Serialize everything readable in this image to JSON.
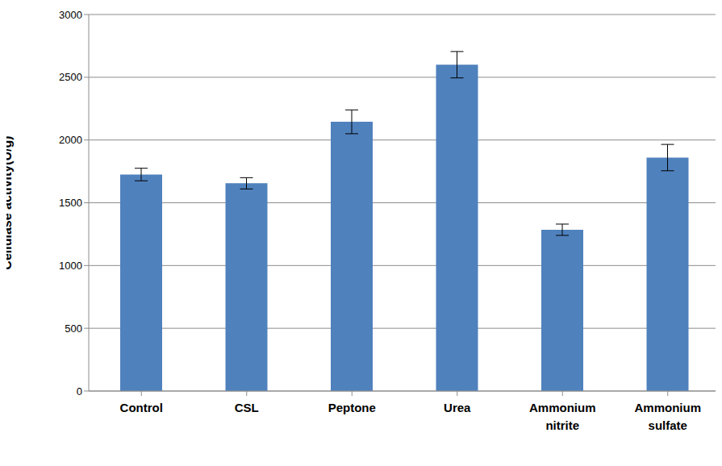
{
  "chart_data": {
    "type": "bar",
    "y_label": "Cellulase activity(U/g)",
    "categories": [
      "Control",
      "CSL",
      "Peptone",
      "Urea",
      "Ammonium nitrite",
      "Ammonium sulfate"
    ],
    "values": [
      1725,
      1655,
      2145,
      2600,
      1285,
      1860
    ],
    "errors": [
      50,
      45,
      95,
      105,
      45,
      105
    ],
    "color": "#4f81bd",
    "ylim": [
      0,
      3000
    ],
    "yticks": [
      0,
      500,
      1000,
      1500,
      2000,
      2500,
      3000
    ],
    "grid": true
  }
}
